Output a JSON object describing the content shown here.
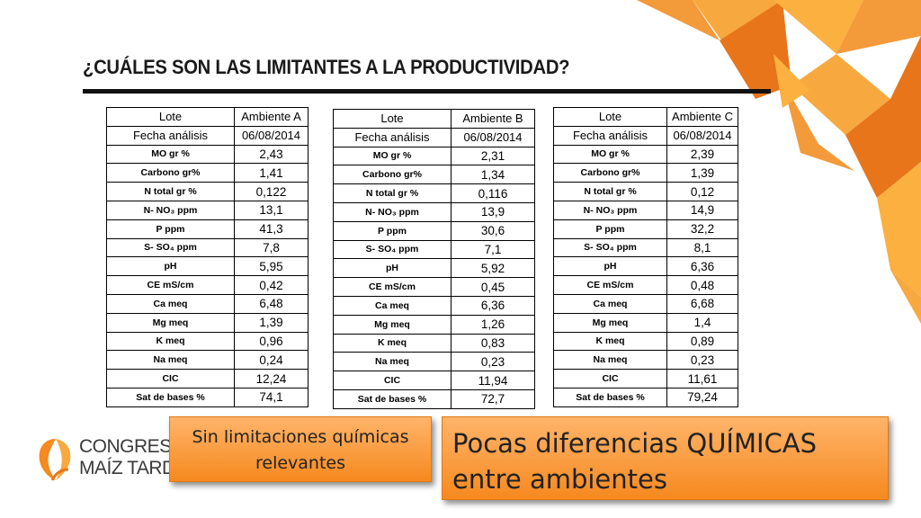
{
  "slide": {
    "title": "¿CUÁLES SON LAS LIMITANTES A LA PRODUCTIVIDAD?"
  },
  "labels": {
    "lote": "Lote",
    "fecha": "Fecha análisis",
    "rows": [
      "MO gr %",
      "Carbono gr%",
      "N total gr %",
      "N- NO₃ ppm",
      "P ppm",
      "S- SO₄ ppm",
      "pH",
      "CE mS/cm",
      "Ca meq",
      "Mg meq",
      "K meq",
      "Na meq",
      "CIC",
      "Sat de bases %"
    ]
  },
  "tables": [
    {
      "ambiente": "Ambiente A",
      "fecha": "06/08/2014",
      "values": [
        "2,43",
        "1,41",
        "0,122",
        "13,1",
        "41,3",
        "7,8",
        "5,95",
        "0,42",
        "6,48",
        "1,39",
        "0,96",
        "0,24",
        "12,24",
        "74,1"
      ]
    },
    {
      "ambiente": "Ambiente B",
      "fecha": "06/08/2014",
      "values": [
        "2,31",
        "1,34",
        "0,116",
        "13,9",
        "30,6",
        "7,1",
        "5,92",
        "0,45",
        "6,36",
        "1,26",
        "0,83",
        "0,23",
        "11,94",
        "72,7"
      ]
    },
    {
      "ambiente": "Ambiente C",
      "fecha": "06/08/2014",
      "values": [
        "2,39",
        "1,39",
        "0,12",
        "14,9",
        "32,2",
        "8,1",
        "6,36",
        "0,48",
        "6,68",
        "1,4",
        "0,89",
        "0,23",
        "11,61",
        "79,24"
      ]
    }
  ],
  "callouts": {
    "left": "Sin limitaciones químicas relevantes",
    "right": "Pocas diferencias QUÍMICAS entre ambientes"
  },
  "logo": {
    "line1": "CONGRESO",
    "line2": "MAÍZ TARD"
  },
  "colors": {
    "accent_orange": "#f6891f",
    "deco_dark": "#e8751a",
    "deco_light": "#fbb040"
  }
}
